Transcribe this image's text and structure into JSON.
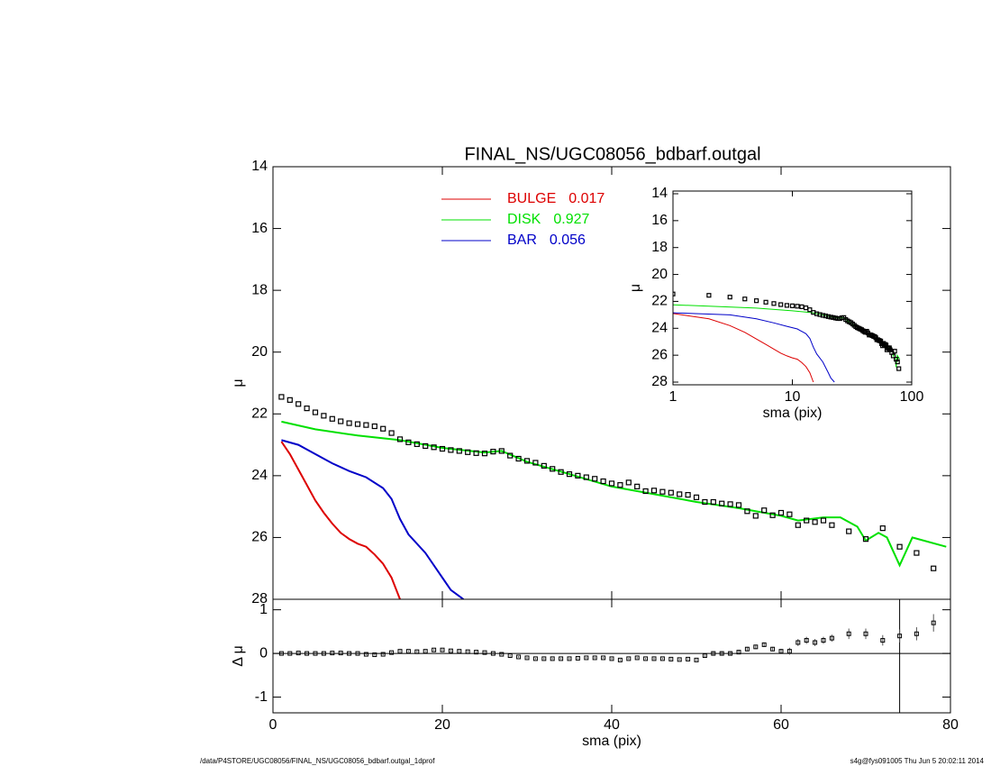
{
  "chart_data": [
    {
      "type": "line",
      "title": "FINAL_NS/UGC08056_bdbarf.outgal",
      "ylabel": "μ",
      "xlim": [
        0,
        80
      ],
      "xticks": [
        0,
        20,
        40,
        60,
        80
      ],
      "ylim": [
        28,
        14
      ],
      "yticks": [
        14,
        16,
        18,
        20,
        22,
        24,
        26,
        28
      ],
      "observed": {
        "color": "#000000",
        "x": [
          1,
          2,
          3,
          4,
          5,
          6,
          7,
          8,
          9,
          10,
          11,
          12,
          13,
          14,
          15,
          16,
          17,
          18,
          19,
          20,
          21,
          22,
          23,
          24,
          25,
          26,
          27,
          28,
          29,
          30,
          31,
          32,
          33,
          34,
          35,
          36,
          37,
          38,
          39,
          40,
          41,
          42,
          43,
          44,
          45,
          46,
          47,
          48,
          49,
          50,
          51,
          52,
          53,
          54,
          55,
          56,
          57,
          58,
          59,
          60,
          61,
          62,
          63,
          64,
          65,
          66,
          68,
          70,
          72,
          74,
          76,
          78
        ],
        "values": [
          21.45,
          21.55,
          21.68,
          21.82,
          21.95,
          22.06,
          22.16,
          22.24,
          22.3,
          22.33,
          22.36,
          22.4,
          22.48,
          22.62,
          22.82,
          22.92,
          22.98,
          23.04,
          23.08,
          23.13,
          23.17,
          23.2,
          23.24,
          23.27,
          23.28,
          23.22,
          23.2,
          23.35,
          23.45,
          23.52,
          23.58,
          23.68,
          23.78,
          23.88,
          23.95,
          24.0,
          24.05,
          24.1,
          24.18,
          24.25,
          24.3,
          24.22,
          24.35,
          24.5,
          24.48,
          24.52,
          24.55,
          24.6,
          24.62,
          24.7,
          24.85,
          24.85,
          24.9,
          24.92,
          24.95,
          25.15,
          25.3,
          25.12,
          25.28,
          25.2,
          25.25,
          25.6,
          25.45,
          25.5,
          25.45,
          25.6,
          25.8,
          26.05,
          25.7,
          26.3,
          26.5,
          27.0
        ]
      },
      "series": [
        {
          "name": "BULGE",
          "fraction": 0.017,
          "color": "#dd0000",
          "x": [
            1,
            2,
            3,
            4,
            5,
            6,
            7,
            8,
            9,
            10,
            11,
            12,
            13,
            14,
            15
          ],
          "values": [
            22.9,
            23.3,
            23.8,
            24.3,
            24.8,
            25.2,
            25.55,
            25.85,
            26.05,
            26.2,
            26.3,
            26.55,
            26.85,
            27.3,
            28.0
          ]
        },
        {
          "name": "DISK",
          "fraction": 0.927,
          "color": "#00e000",
          "x": [
            1,
            5,
            10,
            15,
            20,
            25,
            27,
            30,
            35,
            40,
            45,
            50,
            55,
            60,
            62,
            65,
            67,
            69,
            70,
            71.5,
            72.5,
            74,
            75.5,
            79.5
          ],
          "values": [
            22.25,
            22.5,
            22.7,
            22.85,
            23.1,
            23.25,
            23.2,
            23.55,
            23.95,
            24.35,
            24.6,
            24.85,
            25.05,
            25.3,
            25.45,
            25.35,
            25.35,
            25.65,
            26.1,
            25.85,
            26.0,
            26.9,
            26.0,
            26.3
          ]
        },
        {
          "name": "BAR",
          "fraction": 0.056,
          "color": "#0000c8",
          "x": [
            1,
            3,
            5,
            7,
            9,
            11,
            13,
            14,
            15,
            16,
            18,
            20,
            21,
            22.5
          ],
          "values": [
            22.85,
            23.0,
            23.3,
            23.6,
            23.85,
            24.05,
            24.4,
            24.75,
            25.4,
            25.9,
            26.5,
            27.3,
            27.7,
            28.0
          ]
        }
      ]
    },
    {
      "type": "line",
      "xscale": "log",
      "xlabel": "sma (pix)",
      "ylabel": "μ",
      "xlim": [
        1,
        100
      ],
      "xticks": [
        1,
        10,
        100
      ],
      "ylim": [
        28.2,
        13.8
      ],
      "yticks": [
        14,
        16,
        18,
        20,
        22,
        24,
        26,
        28
      ]
    },
    {
      "type": "scatter",
      "xlabel": "sma (pix)",
      "ylabel": "Δ μ",
      "xlim": [
        0,
        80
      ],
      "xticks": [
        0,
        20,
        40,
        60,
        80
      ],
      "ylim": [
        -1.36,
        1.24
      ],
      "yticks": [
        -1,
        0,
        1
      ],
      "hline": 0,
      "vline": 74,
      "x": [
        1,
        2,
        3,
        4,
        5,
        6,
        7,
        8,
        9,
        10,
        11,
        12,
        13,
        14,
        15,
        16,
        17,
        18,
        19,
        20,
        21,
        22,
        23,
        24,
        25,
        26,
        27,
        28,
        29,
        30,
        31,
        32,
        33,
        34,
        35,
        36,
        37,
        38,
        39,
        40,
        41,
        42,
        43,
        44,
        45,
        46,
        47,
        48,
        49,
        50,
        51,
        52,
        53,
        54,
        55,
        56,
        57,
        58,
        59,
        60,
        61,
        62,
        63,
        64,
        65,
        66,
        68,
        70,
        72,
        74,
        76,
        78
      ],
      "values": [
        0,
        0,
        0.01,
        0,
        0,
        0,
        0.01,
        0.01,
        0,
        0,
        -0.02,
        -0.03,
        -0.02,
        0.02,
        0.05,
        0.05,
        0.04,
        0.05,
        0.08,
        0.08,
        0.06,
        0.05,
        0.04,
        0.03,
        0.02,
        0,
        -0.02,
        -0.05,
        -0.08,
        -0.1,
        -0.12,
        -0.12,
        -0.12,
        -0.12,
        -0.12,
        -0.11,
        -0.1,
        -0.1,
        -0.1,
        -0.12,
        -0.15,
        -0.12,
        -0.1,
        -0.12,
        -0.12,
        -0.12,
        -0.13,
        -0.14,
        -0.13,
        -0.15,
        -0.05,
        0,
        0,
        0,
        0.03,
        0.1,
        0.15,
        0.2,
        0.1,
        0.05,
        0.05,
        0.25,
        0.3,
        0.25,
        0.3,
        0.35,
        0.45,
        0.45,
        0.3,
        0.4,
        0.45,
        0.7
      ],
      "errors": [
        0.02,
        0.02,
        0.02,
        0.02,
        0.02,
        0.02,
        0.02,
        0.02,
        0.02,
        0.02,
        0.02,
        0.02,
        0.02,
        0.02,
        0.02,
        0.02,
        0.02,
        0.02,
        0.02,
        0.02,
        0.02,
        0.02,
        0.02,
        0.02,
        0.02,
        0.02,
        0.02,
        0.02,
        0.02,
        0.02,
        0.02,
        0.02,
        0.02,
        0.02,
        0.02,
        0.02,
        0.02,
        0.02,
        0.02,
        0.02,
        0.02,
        0.02,
        0.02,
        0.02,
        0.02,
        0.02,
        0.02,
        0.02,
        0.02,
        0.02,
        0.05,
        0.05,
        0.05,
        0.05,
        0.05,
        0.05,
        0.05,
        0.05,
        0.05,
        0.05,
        0.08,
        0.08,
        0.08,
        0.08,
        0.08,
        0.08,
        0.12,
        0.12,
        0.12,
        0.15,
        0.15,
        0.2
      ]
    }
  ],
  "footer": {
    "left": "/data/P4STORE/UGC08056/FINAL_NS/UGC08056_bdbarf.outgal_1dprof",
    "right": "s4g@fys091005  Thu Jun  5 20:02:11 2014"
  }
}
